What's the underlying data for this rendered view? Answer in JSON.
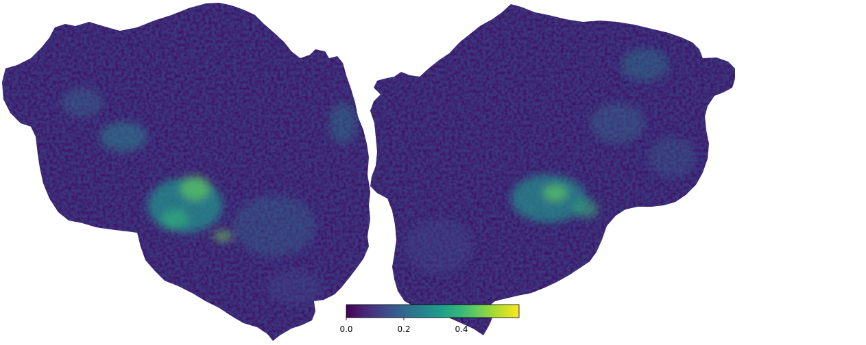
{
  "figure": {
    "description_type": "flatmap",
    "hemispheres": [
      "left",
      "right"
    ],
    "colormap": "viridis",
    "colors": {
      "viridis_stops": [
        "#440154",
        "#482878",
        "#3e4989",
        "#31688e",
        "#26828e",
        "#1f9e89",
        "#35b779",
        "#6ece58",
        "#b5de2b",
        "#fde725"
      ],
      "background": "#ffffff"
    }
  },
  "colorbar": {
    "vmin": 0.0,
    "vmax": 0.6,
    "tick_values": [
      0.0,
      0.2,
      0.4
    ],
    "tick_labels": [
      "0.0",
      "0.2",
      "0.4"
    ]
  }
}
